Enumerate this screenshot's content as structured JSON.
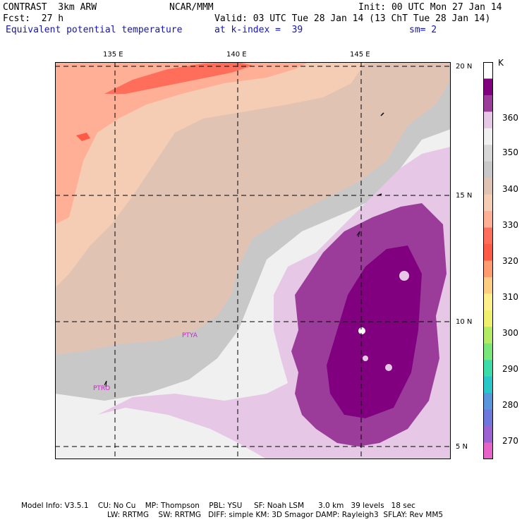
{
  "header": {
    "model": "CONTRAST  3km ARW",
    "org": "NCAR/MMM",
    "init": "Init: 00 UTC Mon 27 Jan 14",
    "fcst": "Fcst:  27 h",
    "valid": "Valid: 03 UTC Tue 28 Jan 14 (13 ChT Tue 28 Jan 14)",
    "field": "Equivalent potential temperature",
    "level": "at k-index =  39",
    "smooth": "sm= 2"
  },
  "map": {
    "lon_labels": [
      "135 E",
      "140 E",
      "145 E"
    ],
    "lat_labels": [
      "20 N",
      "15 N",
      "10 N",
      "5 N"
    ],
    "stations": [
      "PTYA",
      "PTRO"
    ]
  },
  "colorbar": {
    "unit": "K",
    "labels": [
      "360",
      "350",
      "340",
      "330",
      "320",
      "310",
      "300",
      "290",
      "280",
      "270"
    ],
    "colors": [
      "#ffffff",
      "#800080",
      "#9b3c9b",
      "#e6c8e6",
      "#f0f0f0",
      "#d7d7d7",
      "#c8c8c8",
      "#e1c3b4",
      "#f5cdb4",
      "#ffaf96",
      "#ff6e5a",
      "#ff5a46",
      "#ff9b6e",
      "#ffcd82",
      "#fff08c",
      "#eef06e",
      "#b4eb64",
      "#78e678",
      "#3cdcaa",
      "#28c8c8",
      "#5a96dc",
      "#6e78dc",
      "#9b64d2",
      "#e664c8"
    ]
  },
  "footer": {
    "line1": "Model Info: V3.5.1    CU: No Cu    MP: Thompson    PBL: YSU     SF: Noah LSM      3.0 km   39 levels   18 sec",
    "line2": "LW: RRTMG    SW: RRTMG   DIFF: simple KM: 3D Smagor DAMP: Rayleigh3  SFLAY: Rev MM5"
  }
}
